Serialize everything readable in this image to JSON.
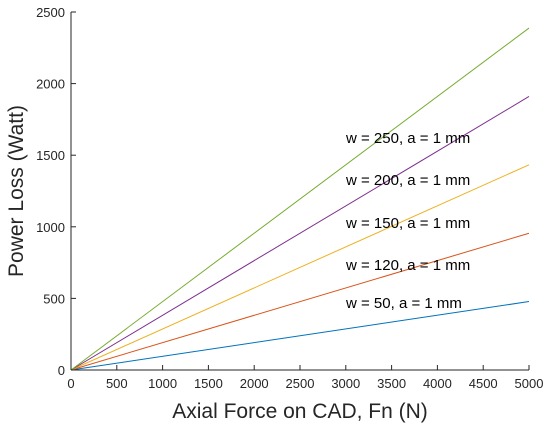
{
  "chart_data": {
    "type": "line",
    "title": "",
    "xlabel": "Axial Force on CAD, Fn (N)",
    "ylabel": "Power Loss (Watt)",
    "xlim": [
      0,
      5000
    ],
    "ylim": [
      0,
      2500
    ],
    "xticks": [
      0,
      500,
      1000,
      1500,
      2000,
      2500,
      3000,
      3500,
      4000,
      4500,
      5000
    ],
    "yticks": [
      0,
      500,
      1000,
      1500,
      2000,
      2500
    ],
    "grid": false,
    "legend": "none",
    "series": [
      {
        "annotation": "w = 50, a = 1 mm",
        "color": "#0072BD",
        "x": [
          0,
          5000
        ],
        "y": [
          0,
          478
        ]
      },
      {
        "annotation": "w = 120, a = 1 mm",
        "color": "#D95319",
        "x": [
          0,
          5000
        ],
        "y": [
          0,
          955
        ]
      },
      {
        "annotation": "w = 150, a = 1 mm",
        "color": "#EDB120",
        "x": [
          0,
          5000
        ],
        "y": [
          0,
          1433
        ]
      },
      {
        "annotation": "w = 200, a = 1 mm",
        "color": "#7E2F8E",
        "x": [
          0,
          5000
        ],
        "y": [
          0,
          1910
        ]
      },
      {
        "annotation": "w = 250, a = 1 mm",
        "color": "#77AC30",
        "x": [
          0,
          5000
        ],
        "y": [
          0,
          2388
        ]
      }
    ]
  }
}
